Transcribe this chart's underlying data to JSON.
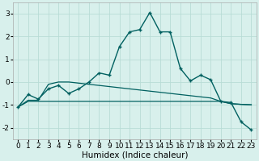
{
  "xlabel": "Humidex (Indice chaleur)",
  "x": [
    0,
    1,
    2,
    3,
    4,
    5,
    6,
    7,
    8,
    9,
    10,
    11,
    12,
    13,
    14,
    15,
    16,
    17,
    18,
    19,
    20,
    21,
    22,
    23
  ],
  "line_main": [
    -1.1,
    -0.55,
    -0.75,
    -0.3,
    -0.15,
    -0.5,
    -0.3,
    0.0,
    0.4,
    0.3,
    1.55,
    2.2,
    2.3,
    3.05,
    2.2,
    2.2,
    0.6,
    0.05,
    0.3,
    0.1,
    -0.85,
    -0.9,
    -1.75,
    -2.1
  ],
  "line_diag": [
    -1.1,
    -0.8,
    -0.8,
    -0.1,
    0.0,
    0.0,
    -0.05,
    -0.1,
    -0.15,
    -0.2,
    -0.25,
    -0.3,
    -0.35,
    -0.4,
    -0.45,
    -0.5,
    -0.55,
    -0.6,
    -0.65,
    -0.7,
    -0.85,
    -0.95,
    -0.98,
    -1.0
  ],
  "line_flat": [
    -1.1,
    -0.85,
    -0.85,
    -0.85,
    -0.85,
    -0.85,
    -0.85,
    -0.85,
    -0.85,
    -0.85,
    -0.85,
    -0.85,
    -0.85,
    -0.85,
    -0.85,
    -0.85,
    -0.85,
    -0.85,
    -0.85,
    -0.85,
    -0.85,
    -0.95,
    -0.98,
    -1.0
  ],
  "bg_color": "#d8f0ec",
  "grid_color": "#b8dcd6",
  "line_color": "#006060",
  "ylim": [
    -2.5,
    3.5
  ],
  "yticks": [
    -2,
    -1,
    0,
    1,
    2,
    3
  ],
  "xticks": [
    0,
    1,
    2,
    3,
    4,
    5,
    6,
    7,
    8,
    9,
    10,
    11,
    12,
    13,
    14,
    15,
    16,
    17,
    18,
    19,
    20,
    21,
    22,
    23
  ],
  "tick_fontsize": 6.5,
  "xlabel_fontsize": 7.5
}
